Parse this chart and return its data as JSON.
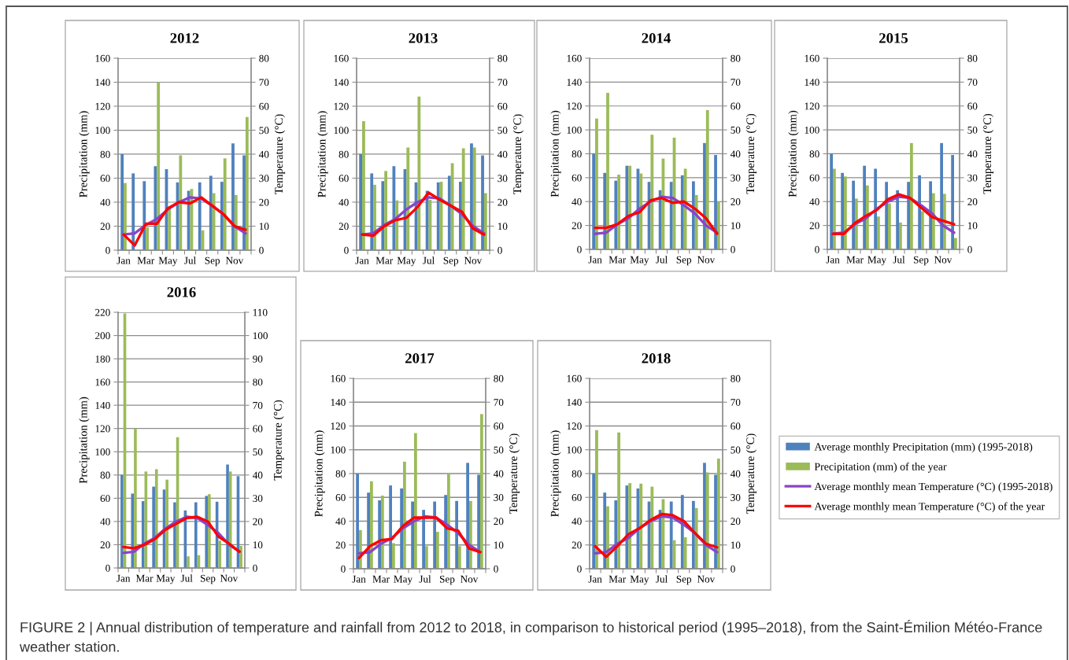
{
  "chart_data": [
    {
      "type": "bar",
      "title": "2012",
      "categories": [
        "Jan",
        null,
        "Mar",
        null,
        "May",
        null,
        "Jul",
        null,
        "Sep",
        null,
        "Nov",
        null
      ],
      "ylabel": "Precipitation (mm)",
      "y2label": "Temperature (°C)",
      "ylim": [
        0,
        160
      ],
      "yticks": [
        0,
        20,
        40,
        60,
        80,
        100,
        120,
        140,
        160
      ],
      "y2lim": [
        0,
        80
      ],
      "y2ticks": [
        0,
        10,
        20,
        30,
        40,
        50,
        60,
        70,
        80
      ],
      "grid": "y",
      "legend": "bottom right",
      "series": [
        {
          "name": "Average monthly Precipitation (mm) (1995-2018)",
          "color": "#4f81bd",
          "values": [
            80,
            64,
            57.5,
            70,
            67.5,
            56.5,
            49.5,
            56.5,
            62,
            57,
            89,
            79
          ]
        },
        {
          "name": "Precipitation (mm) of the year",
          "color": "#9bbb59",
          "values": [
            56,
            null,
            19,
            140,
            36,
            79,
            51,
            16.5,
            47.5,
            76.5,
            46,
            111
          ]
        },
        {
          "name": "Average monthly mean Temperature (°C) (1995-2018)",
          "type": "line",
          "axis": "y2",
          "color": "#8a44c8",
          "values": [
            6.5,
            7,
            10.5,
            13,
            17,
            20,
            22,
            21.5,
            18.5,
            15,
            10,
            7
          ]
        },
        {
          "name": "Average monthly mean Temperature (°C) of the year",
          "type": "line",
          "axis": "y2",
          "color": "#ff0000",
          "values": [
            6.5,
            2,
            11,
            11,
            17.5,
            20,
            19.5,
            22,
            18.5,
            15,
            10,
            8.5
          ]
        }
      ]
    },
    {
      "type": "bar",
      "title": "2013",
      "categories": [
        "Jan",
        null,
        "Mar",
        null,
        "May",
        null,
        "Jul",
        null,
        "Sep",
        null,
        "Nov",
        null
      ],
      "ylabel": "Precipitation (mm)",
      "y2label": "Temperature (°C)",
      "ylim": [
        0,
        160
      ],
      "yticks": [
        0,
        20,
        40,
        60,
        80,
        100,
        120,
        140,
        160
      ],
      "y2lim": [
        0,
        80
      ],
      "y2ticks": [
        0,
        10,
        20,
        30,
        40,
        50,
        60,
        70,
        80
      ],
      "grid": "y",
      "series": [
        {
          "color": "#4f81bd",
          "values": [
            80,
            64,
            57.5,
            70,
            67.5,
            56.5,
            49.5,
            56.5,
            62,
            57,
            89,
            79
          ]
        },
        {
          "color": "#9bbb59",
          "values": [
            107.5,
            54.5,
            66,
            41.5,
            85.5,
            128,
            42,
            57,
            72.5,
            85,
            85.5,
            47.5
          ]
        },
        {
          "type": "line",
          "axis": "y2",
          "color": "#8a44c8",
          "values": [
            6.5,
            7,
            10.5,
            13,
            17,
            20,
            22,
            21.5,
            18.5,
            15,
            10,
            7
          ]
        },
        {
          "type": "line",
          "axis": "y2",
          "color": "#ff0000",
          "values": [
            6.5,
            6,
            10,
            12.5,
            13.5,
            18,
            24,
            21,
            18.5,
            16,
            9,
            6.5
          ]
        }
      ]
    },
    {
      "type": "bar",
      "title": "2014",
      "categories": [
        "Jan",
        null,
        "Mar",
        null,
        "May",
        null,
        "Jul",
        null,
        "Sep",
        null,
        "Nov",
        null
      ],
      "ylabel": "Precipitation (mm)",
      "y2label": "Temperature (°C)",
      "ylim": [
        0,
        160
      ],
      "yticks": [
        0,
        20,
        40,
        60,
        80,
        100,
        120,
        140,
        160
      ],
      "y2lim": [
        0,
        80
      ],
      "y2ticks": [
        0,
        10,
        20,
        30,
        40,
        50,
        60,
        70,
        80
      ],
      "grid": "y",
      "series": [
        {
          "color": "#4f81bd",
          "values": [
            80,
            64,
            57.5,
            70,
            67.5,
            56.5,
            49.5,
            56.5,
            62,
            57,
            89,
            79
          ]
        },
        {
          "color": "#9bbb59",
          "values": [
            109.5,
            131,
            62.5,
            70,
            63.5,
            96,
            76,
            93.5,
            67.5,
            45.5,
            116.5,
            40
          ]
        },
        {
          "type": "line",
          "axis": "y2",
          "color": "#8a44c8",
          "values": [
            6.5,
            7,
            10.5,
            13,
            17,
            20,
            22,
            21.5,
            18.5,
            15,
            10,
            7
          ]
        },
        {
          "type": "line",
          "axis": "y2",
          "color": "#ff0000",
          "values": [
            9,
            9,
            10.5,
            14,
            15.5,
            20.5,
            21.5,
            19.5,
            20,
            17,
            13,
            6.5
          ]
        }
      ]
    },
    {
      "type": "bar",
      "title": "2015",
      "categories": [
        "Jan",
        null,
        "Mar",
        null,
        "May",
        null,
        "Jul",
        null,
        "Sep",
        null,
        "Nov",
        null
      ],
      "ylabel": "Precipitation (mm)",
      "y2label": "Temperature (°C)",
      "ylim": [
        0,
        160
      ],
      "yticks": [
        0,
        20,
        40,
        60,
        80,
        100,
        120,
        140,
        160
      ],
      "y2lim": [
        0,
        80
      ],
      "y2ticks": [
        0,
        10,
        20,
        30,
        40,
        50,
        60,
        70,
        80
      ],
      "grid": "y",
      "series": [
        {
          "color": "#4f81bd",
          "values": [
            80,
            64,
            57.5,
            70,
            67.5,
            56.5,
            49.5,
            56.5,
            62,
            57,
            89,
            79
          ]
        },
        {
          "color": "#9bbb59",
          "values": [
            67.5,
            61,
            42.5,
            53.5,
            27.5,
            38.5,
            22.5,
            89,
            32,
            47,
            46.5,
            9.5
          ]
        },
        {
          "type": "line",
          "axis": "y2",
          "color": "#8a44c8",
          "values": [
            6.5,
            7,
            10.5,
            13,
            17,
            20,
            22,
            21.5,
            18.5,
            15,
            10,
            7
          ]
        },
        {
          "type": "line",
          "axis": "y2",
          "color": "#ff0000",
          "values": [
            6.5,
            6.5,
            11,
            14,
            16.5,
            21,
            23,
            21.5,
            17.5,
            13.5,
            12,
            10.5
          ]
        }
      ]
    },
    {
      "type": "bar",
      "title": "2016",
      "categories": [
        "Jan",
        null,
        "Mar",
        null,
        "May",
        null,
        "Jul",
        null,
        "Sep",
        null,
        "Nov",
        null
      ],
      "ylabel": "Precipitation (mm)",
      "y2label": "Temperature (°C)",
      "ylim": [
        0,
        220
      ],
      "yticks": [
        0,
        20,
        40,
        60,
        80,
        100,
        120,
        140,
        160,
        180,
        200,
        220
      ],
      "y2lim": [
        0,
        110
      ],
      "y2ticks": [
        0,
        10,
        20,
        30,
        40,
        50,
        60,
        70,
        80,
        90,
        100,
        110
      ],
      "grid": "y",
      "series": [
        {
          "color": "#4f81bd",
          "values": [
            80,
            64,
            57.5,
            70,
            67.5,
            56.5,
            49.5,
            56.5,
            62,
            57,
            89,
            79
          ]
        },
        {
          "color": "#9bbb59",
          "values": [
            219,
            120,
            83,
            85,
            76,
            112.5,
            10,
            11,
            63.5,
            23.5,
            83,
            19
          ]
        },
        {
          "type": "line",
          "axis": "y2",
          "color": "#8a44c8",
          "values": [
            6.5,
            7,
            10.5,
            13,
            17,
            20,
            22,
            21.5,
            18.5,
            15,
            10,
            7
          ]
        },
        {
          "type": "line",
          "axis": "y2",
          "color": "#ff0000",
          "values": [
            9,
            8.5,
            10,
            12.5,
            16.5,
            19,
            21.5,
            22,
            20,
            13.5,
            10.5,
            7
          ]
        }
      ]
    },
    {
      "type": "bar",
      "title": "2017",
      "categories": [
        "Jan",
        null,
        "Mar",
        null,
        "May",
        null,
        "Jul",
        null,
        "Sep",
        null,
        "Nov",
        null
      ],
      "ylabel": "Precipitation (mm)",
      "y2label": "Temperature (°C)",
      "ylim": [
        0,
        160
      ],
      "yticks": [
        0,
        20,
        40,
        60,
        80,
        100,
        120,
        140,
        160
      ],
      "y2lim": [
        0,
        80
      ],
      "y2ticks": [
        0,
        10,
        20,
        30,
        40,
        50,
        60,
        70,
        80
      ],
      "grid": "y",
      "series": [
        {
          "color": "#4f81bd",
          "values": [
            80,
            64,
            57.5,
            70,
            67.5,
            56.5,
            49.5,
            56.5,
            62,
            57,
            89,
            79
          ]
        },
        {
          "color": "#9bbb59",
          "values": [
            32.5,
            73.5,
            61.5,
            21.5,
            90,
            114,
            19,
            31,
            80,
            19,
            57,
            130
          ]
        },
        {
          "type": "line",
          "axis": "y2",
          "color": "#8a44c8",
          "values": [
            6.5,
            7,
            10.5,
            13,
            17,
            20,
            22,
            21.5,
            18.5,
            15,
            10,
            7
          ]
        },
        {
          "type": "line",
          "axis": "y2",
          "color": "#ff0000",
          "values": [
            4.5,
            9.5,
            12,
            12.5,
            18,
            21.5,
            21.5,
            21.5,
            17,
            16,
            8.5,
            7
          ]
        }
      ]
    },
    {
      "type": "bar",
      "title": "2018",
      "categories": [
        "Jan",
        null,
        "Mar",
        null,
        "May",
        null,
        "Jul",
        null,
        "Sep",
        null,
        "Nov",
        null
      ],
      "ylabel": "Precipitation (mm)",
      "y2label": "Temperature (°C)",
      "ylim": [
        0,
        160
      ],
      "yticks": [
        0,
        20,
        40,
        60,
        80,
        100,
        120,
        140,
        160
      ],
      "y2lim": [
        0,
        80
      ],
      "y2ticks": [
        0,
        10,
        20,
        30,
        40,
        50,
        60,
        70,
        80
      ],
      "grid": "y",
      "series": [
        {
          "color": "#4f81bd",
          "values": [
            80,
            64,
            57.5,
            70,
            67.5,
            56.5,
            49.5,
            56.5,
            62,
            57,
            89,
            79
          ]
        },
        {
          "color": "#9bbb59",
          "values": [
            116.5,
            52.5,
            114.5,
            72,
            71.5,
            69,
            58.5,
            24,
            26.5,
            51,
            81,
            92.5
          ]
        },
        {
          "type": "line",
          "axis": "y2",
          "color": "#8a44c8",
          "values": [
            6.5,
            7,
            10.5,
            13,
            17,
            20,
            22,
            21.5,
            18.5,
            15,
            10,
            7
          ]
        },
        {
          "type": "line",
          "axis": "y2",
          "color": "#ff0000",
          "values": [
            9.5,
            5,
            9.5,
            14.5,
            17,
            20.5,
            23,
            22.5,
            20,
            15,
            10.5,
            9
          ]
        }
      ],
      "annotations": [
        "FIGURE 2 | Annual distribution of temperature and rainfall from 2012 to 2018, in comparison to historical period (1995–2018), from the Saint-Émilion Météo-France weather station."
      ]
    }
  ]
}
